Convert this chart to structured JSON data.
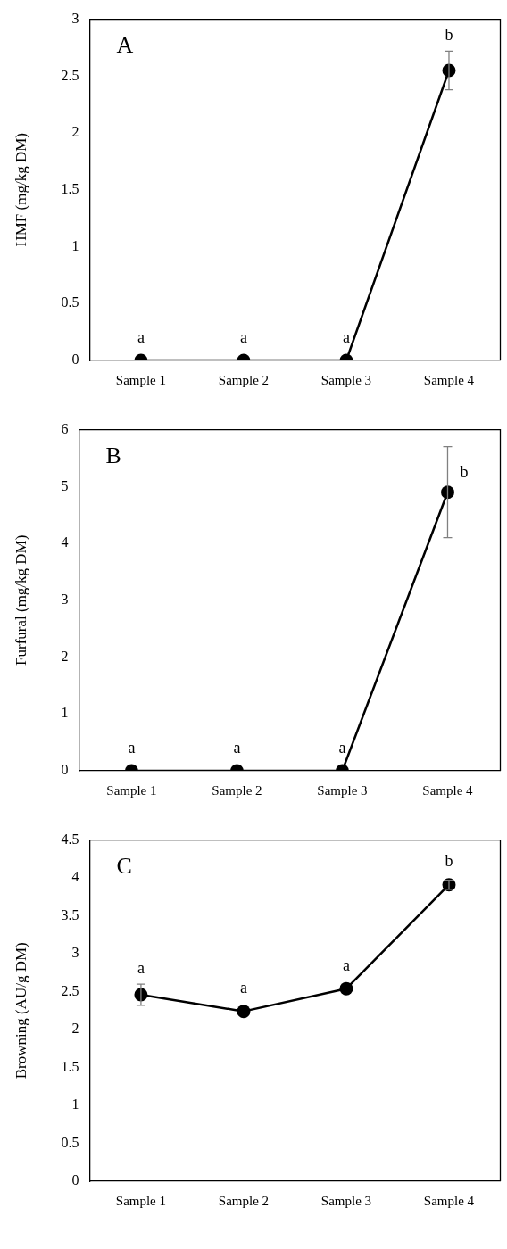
{
  "chart_data": [
    {
      "type": "line",
      "title": "A",
      "ylabel": "HMF (mg/kg DM)",
      "categories": [
        "Sample 1",
        "Sample 2",
        "Sample 3",
        "Sample 4"
      ],
      "series": [
        {
          "color": "#000000",
          "values": [
            0,
            0,
            0,
            2.55
          ],
          "errors": [
            null,
            null,
            null,
            0.17
          ]
        }
      ],
      "ylim": [
        0,
        3
      ],
      "yticks": [
        0,
        0.5,
        1,
        1.5,
        2,
        2.5,
        3
      ],
      "grid": false,
      "legend": false,
      "marker": "circle",
      "line_style": "solid",
      "annotations": [
        {
          "text": "a",
          "x": "Sample 1",
          "y": 0
        },
        {
          "text": "a",
          "x": "Sample 2",
          "y": 0
        },
        {
          "text": "a",
          "x": "Sample 3",
          "y": 0
        },
        {
          "text": "b",
          "x": "Sample 4",
          "y": 2.55
        }
      ]
    },
    {
      "type": "line",
      "title": "B",
      "ylabel": "Furfural (mg/kg DM)",
      "categories": [
        "Sample 1",
        "Sample 2",
        "Sample 3",
        "Sample 4"
      ],
      "series": [
        {
          "color": "#000000",
          "values": [
            0,
            0,
            0,
            4.9
          ],
          "errors": [
            null,
            null,
            null,
            0.8
          ]
        }
      ],
      "ylim": [
        0,
        6
      ],
      "yticks": [
        0,
        1,
        2,
        3,
        4,
        5,
        6
      ],
      "grid": false,
      "legend": false,
      "marker": "circle",
      "line_style": "solid",
      "annotations": [
        {
          "text": "a",
          "x": "Sample 1",
          "y": 0
        },
        {
          "text": "a",
          "x": "Sample 2",
          "y": 0
        },
        {
          "text": "a",
          "x": "Sample 3",
          "y": 0
        },
        {
          "text": "b",
          "x": "Sample 4",
          "y": 4.9
        }
      ]
    },
    {
      "type": "line",
      "title": "C",
      "ylabel": "Browning (AU/g DM)",
      "categories": [
        "Sample 1",
        "Sample 2",
        "Sample 3",
        "Sample 4"
      ],
      "series": [
        {
          "color": "#000000",
          "values": [
            2.46,
            2.24,
            2.54,
            3.91
          ],
          "errors": [
            0.14,
            null,
            null,
            0.06
          ]
        }
      ],
      "ylim": [
        0,
        4.5
      ],
      "yticks": [
        0,
        0.5,
        1,
        1.5,
        2,
        2.5,
        3,
        3.5,
        4,
        4.5
      ],
      "grid": false,
      "legend": false,
      "marker": "circle",
      "line_style": "solid",
      "annotations": [
        {
          "text": "a",
          "x": "Sample 1",
          "y": 2.46
        },
        {
          "text": "a",
          "x": "Sample 2",
          "y": 2.24
        },
        {
          "text": "a",
          "x": "Sample 3",
          "y": 2.54
        },
        {
          "text": "b",
          "x": "Sample 4",
          "y": 3.91
        }
      ]
    }
  ]
}
